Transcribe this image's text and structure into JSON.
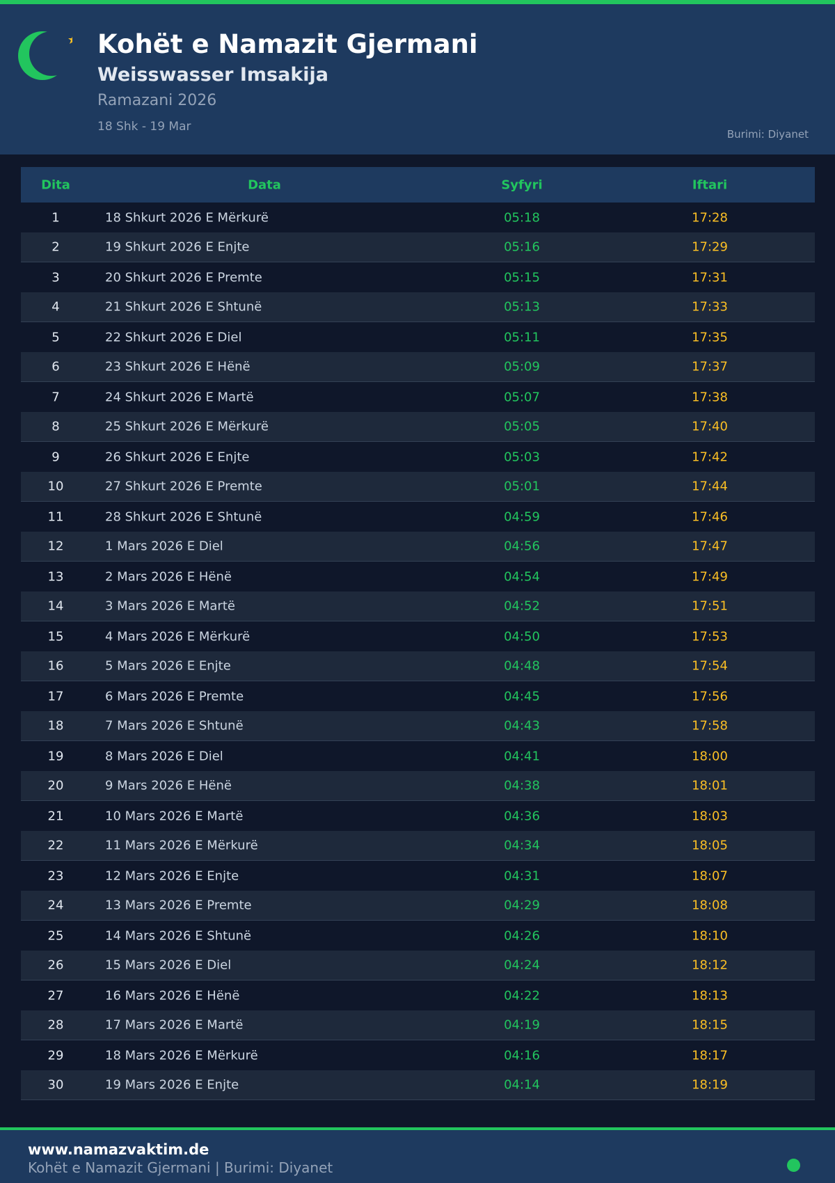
{
  "header": {
    "title": "Kohët e Namazit Gjermani",
    "subtitle": "Weisswasser Imsakija",
    "season": "Ramazani 2026",
    "range": "18 Shk - 19 Mar",
    "source": "Burimi: Diyanet",
    "icon": "crescent-star-icon"
  },
  "colors": {
    "accent": "#22c55e",
    "iftar": "#fbbf24",
    "header_bg": "#1e3a5f",
    "page_bg": "#0f172a"
  },
  "table": {
    "columns": [
      "Dita",
      "Data",
      "Syfyri",
      "Iftari"
    ],
    "rows": [
      [
        "1",
        "18 Shkurt 2026 E Mërkurë",
        "05:18",
        "17:28"
      ],
      [
        "2",
        "19 Shkurt 2026 E Enjte",
        "05:16",
        "17:29"
      ],
      [
        "3",
        "20 Shkurt 2026 E Premte",
        "05:15",
        "17:31"
      ],
      [
        "4",
        "21 Shkurt 2026 E Shtunë",
        "05:13",
        "17:33"
      ],
      [
        "5",
        "22 Shkurt 2026 E Diel",
        "05:11",
        "17:35"
      ],
      [
        "6",
        "23 Shkurt 2026 E Hënë",
        "05:09",
        "17:37"
      ],
      [
        "7",
        "24 Shkurt 2026 E Martë",
        "05:07",
        "17:38"
      ],
      [
        "8",
        "25 Shkurt 2026 E Mërkurë",
        "05:05",
        "17:40"
      ],
      [
        "9",
        "26 Shkurt 2026 E Enjte",
        "05:03",
        "17:42"
      ],
      [
        "10",
        "27 Shkurt 2026 E Premte",
        "05:01",
        "17:44"
      ],
      [
        "11",
        "28 Shkurt 2026 E Shtunë",
        "04:59",
        "17:46"
      ],
      [
        "12",
        "1 Mars 2026 E Diel",
        "04:56",
        "17:47"
      ],
      [
        "13",
        "2 Mars 2026 E Hënë",
        "04:54",
        "17:49"
      ],
      [
        "14",
        "3 Mars 2026 E Martë",
        "04:52",
        "17:51"
      ],
      [
        "15",
        "4 Mars 2026 E Mërkurë",
        "04:50",
        "17:53"
      ],
      [
        "16",
        "5 Mars 2026 E Enjte",
        "04:48",
        "17:54"
      ],
      [
        "17",
        "6 Mars 2026 E Premte",
        "04:45",
        "17:56"
      ],
      [
        "18",
        "7 Mars 2026 E Shtunë",
        "04:43",
        "17:58"
      ],
      [
        "19",
        "8 Mars 2026 E Diel",
        "04:41",
        "18:00"
      ],
      [
        "20",
        "9 Mars 2026 E Hënë",
        "04:38",
        "18:01"
      ],
      [
        "21",
        "10 Mars 2026 E Martë",
        "04:36",
        "18:03"
      ],
      [
        "22",
        "11 Mars 2026 E Mërkurë",
        "04:34",
        "18:05"
      ],
      [
        "23",
        "12 Mars 2026 E Enjte",
        "04:31",
        "18:07"
      ],
      [
        "24",
        "13 Mars 2026 E Premte",
        "04:29",
        "18:08"
      ],
      [
        "25",
        "14 Mars 2026 E Shtunë",
        "04:26",
        "18:10"
      ],
      [
        "26",
        "15 Mars 2026 E Diel",
        "04:24",
        "18:12"
      ],
      [
        "27",
        "16 Mars 2026 E Hënë",
        "04:22",
        "18:13"
      ],
      [
        "28",
        "17 Mars 2026 E Martë",
        "04:19",
        "18:15"
      ],
      [
        "29",
        "18 Mars 2026 E Mërkurë",
        "04:16",
        "18:17"
      ],
      [
        "30",
        "19 Mars 2026 E Enjte",
        "04:14",
        "18:19"
      ]
    ]
  },
  "footer": {
    "website": "www.namazvaktim.de",
    "tagline": "Kohët e Namazit Gjermani | Burimi: Diyanet"
  }
}
